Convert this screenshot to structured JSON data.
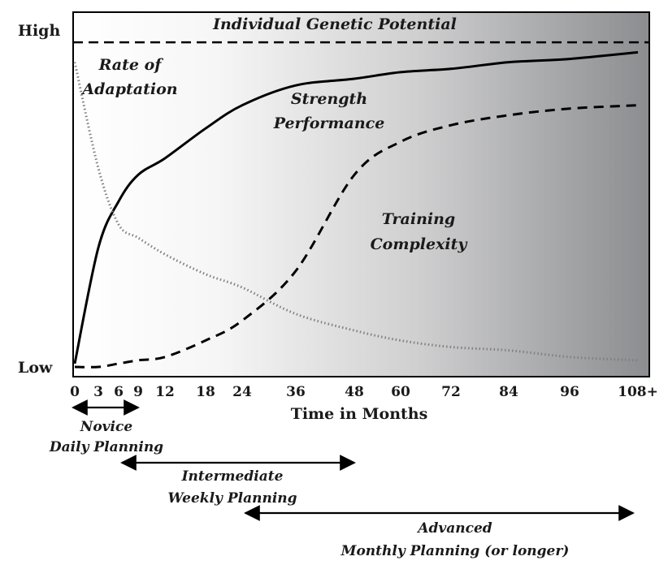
{
  "chart_data": {
    "type": "line",
    "title": "",
    "xlabel": "Time in Months",
    "ylabel": "",
    "y_tick_labels": [
      "High",
      "Low"
    ],
    "x_ticks": [
      "0",
      "3",
      "6",
      "9",
      "12",
      "18",
      "24",
      "36",
      "48",
      "60",
      "72",
      "84",
      "96",
      "108+"
    ],
    "ylim": [
      0,
      100
    ],
    "grid": false,
    "background": "gradient white-to-gray from left to right",
    "reference_line": {
      "label": "Individual Genetic Potential",
      "y": 98
    },
    "series": [
      {
        "name": "Strength Performance",
        "style": "solid",
        "color": "#000000",
        "points": [
          {
            "x": "0",
            "y": 1
          },
          {
            "x": "3",
            "y": 36
          },
          {
            "x": "6",
            "y": 50
          },
          {
            "x": "9",
            "y": 58
          },
          {
            "x": "12",
            "y": 63
          },
          {
            "x": "18",
            "y": 72
          },
          {
            "x": "24",
            "y": 79
          },
          {
            "x": "36",
            "y": 85
          },
          {
            "x": "48",
            "y": 87
          },
          {
            "x": "60",
            "y": 89
          },
          {
            "x": "72",
            "y": 90
          },
          {
            "x": "84",
            "y": 92
          },
          {
            "x": "96",
            "y": 93
          },
          {
            "x": "108+",
            "y": 95
          }
        ]
      },
      {
        "name": "Training Complexity",
        "style": "dashed",
        "color": "#000000",
        "points": [
          {
            "x": "0",
            "y": 0
          },
          {
            "x": "3",
            "y": 0
          },
          {
            "x": "6",
            "y": 1
          },
          {
            "x": "9",
            "y": 2
          },
          {
            "x": "12",
            "y": 3
          },
          {
            "x": "18",
            "y": 8
          },
          {
            "x": "24",
            "y": 14
          },
          {
            "x": "36",
            "y": 29
          },
          {
            "x": "48",
            "y": 58
          },
          {
            "x": "60",
            "y": 68
          },
          {
            "x": "72",
            "y": 73
          },
          {
            "x": "84",
            "y": 76
          },
          {
            "x": "96",
            "y": 78
          },
          {
            "x": "108+",
            "y": 79
          }
        ]
      },
      {
        "name": "Rate of Adaptation",
        "style": "dotted",
        "color": "#808080",
        "points": [
          {
            "x": "0",
            "y": 92
          },
          {
            "x": "3",
            "y": 60
          },
          {
            "x": "6",
            "y": 43
          },
          {
            "x": "9",
            "y": 39
          },
          {
            "x": "12",
            "y": 34
          },
          {
            "x": "18",
            "y": 28
          },
          {
            "x": "24",
            "y": 24
          },
          {
            "x": "36",
            "y": 16
          },
          {
            "x": "48",
            "y": 11
          },
          {
            "x": "60",
            "y": 8
          },
          {
            "x": "72",
            "y": 6
          },
          {
            "x": "84",
            "y": 5
          },
          {
            "x": "96",
            "y": 3
          },
          {
            "x": "108+",
            "y": 2
          }
        ]
      }
    ],
    "phases": [
      {
        "name": "Novice",
        "planning": "Daily Planning",
        "from": "0",
        "to": "9"
      },
      {
        "name": "Intermediate",
        "planning": "Weekly Planning",
        "from": "6",
        "to": "48"
      },
      {
        "name": "Advanced",
        "planning": "Monthly Planning (or longer)",
        "from": "24",
        "to": "108+"
      }
    ]
  }
}
